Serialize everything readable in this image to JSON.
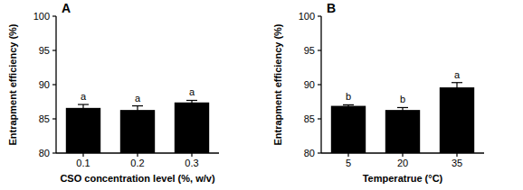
{
  "chart_data": [
    {
      "type": "bar",
      "title": "A",
      "x_label": "CSO concentration level (%, w/v)",
      "y_label": "Entrapment efficiency (%)",
      "categories": [
        "0.1",
        "0.2",
        "0.3"
      ],
      "values": [
        86.6,
        86.3,
        87.4
      ],
      "errors": [
        0.5,
        0.6,
        0.3
      ],
      "annotations": [
        "a",
        "a",
        "a"
      ],
      "color": "#000000",
      "ylim": [
        80,
        100
      ],
      "yticks": [
        80,
        85,
        90,
        95,
        100
      ],
      "grid": false
    },
    {
      "type": "bar",
      "title": "B",
      "x_label": "Temperatrue (°C)",
      "y_label": "Entrapment efficiency (%)",
      "categories": [
        "5",
        "20",
        "35"
      ],
      "values": [
        86.9,
        86.3,
        89.6
      ],
      "errors": [
        0.15,
        0.35,
        0.7
      ],
      "annotations": [
        "b",
        "b",
        "a"
      ],
      "color": "#000000",
      "ylim": [
        80,
        100
      ],
      "yticks": [
        80,
        85,
        90,
        95,
        100
      ],
      "grid": false
    }
  ]
}
